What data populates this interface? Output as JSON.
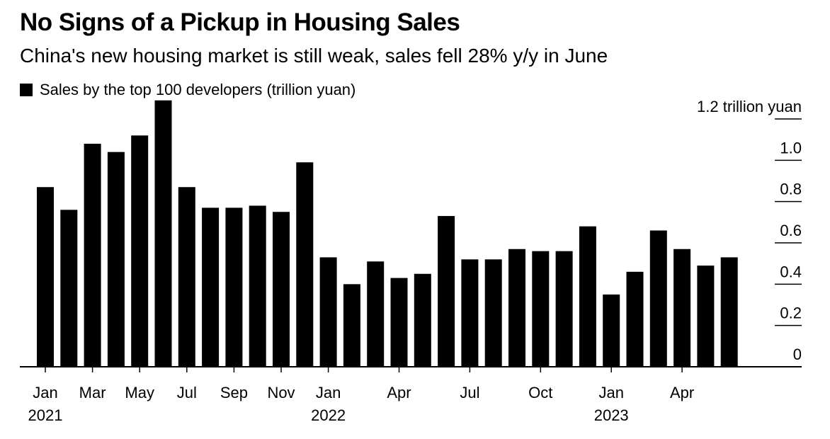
{
  "title": "No Signs of a Pickup in Housing Sales",
  "subtitle": "China's new housing market is still weak, sales fell 28% y/y in June",
  "legend": {
    "label": "Sales by the top 100 developers (trillion yuan)"
  },
  "chart_data": {
    "type": "bar",
    "title": "No Signs of a Pickup in Housing Sales",
    "subtitle": "China's new housing market is still weak, sales fell 28% y/y in June",
    "xlabel": "",
    "ylabel": "",
    "ylim": [
      0,
      1.2
    ],
    "y_ticks": [
      {
        "value": 0,
        "label": "0"
      },
      {
        "value": 0.2,
        "label": "0.2"
      },
      {
        "value": 0.4,
        "label": "0.4"
      },
      {
        "value": 0.6,
        "label": "0.6"
      },
      {
        "value": 0.8,
        "label": "0.8"
      },
      {
        "value": 1.0,
        "label": "1.0"
      },
      {
        "value": 1.2,
        "label": "1.2 trillion yuan"
      }
    ],
    "y_axis_position": "right",
    "grid": false,
    "legend_position": "top-left",
    "bar_color": "#000000",
    "categories": [
      "2021-01",
      "2021-02",
      "2021-03",
      "2021-04",
      "2021-05",
      "2021-06",
      "2021-07",
      "2021-08",
      "2021-09",
      "2021-10",
      "2021-11",
      "2021-12",
      "2022-01",
      "2022-02",
      "2022-03",
      "2022-04",
      "2022-05",
      "2022-06",
      "2022-07",
      "2022-08",
      "2022-09",
      "2022-10",
      "2022-11",
      "2022-12",
      "2023-01",
      "2023-02",
      "2023-03",
      "2023-04",
      "2023-05",
      "2023-06"
    ],
    "series": [
      {
        "name": "Sales by the top 100 developers (trillion yuan)",
        "values": [
          0.87,
          0.76,
          1.08,
          1.04,
          1.12,
          1.29,
          0.87,
          0.77,
          0.77,
          0.78,
          0.75,
          0.99,
          0.53,
          0.4,
          0.51,
          0.43,
          0.45,
          0.73,
          0.52,
          0.52,
          0.57,
          0.56,
          0.56,
          0.68,
          0.35,
          0.46,
          0.66,
          0.57,
          0.49,
          0.53
        ]
      }
    ],
    "x_tick_labels": [
      {
        "index": 0,
        "month": "Jan",
        "year": "2021"
      },
      {
        "index": 2,
        "month": "Mar",
        "year": ""
      },
      {
        "index": 4,
        "month": "May",
        "year": ""
      },
      {
        "index": 6,
        "month": "Jul",
        "year": ""
      },
      {
        "index": 8,
        "month": "Sep",
        "year": ""
      },
      {
        "index": 10,
        "month": "Nov",
        "year": ""
      },
      {
        "index": 12,
        "month": "Jan",
        "year": "2022"
      },
      {
        "index": 15,
        "month": "Apr",
        "year": ""
      },
      {
        "index": 18,
        "month": "Jul",
        "year": ""
      },
      {
        "index": 21,
        "month": "Oct",
        "year": ""
      },
      {
        "index": 24,
        "month": "Jan",
        "year": "2023"
      },
      {
        "index": 27,
        "month": "Apr",
        "year": ""
      }
    ]
  }
}
